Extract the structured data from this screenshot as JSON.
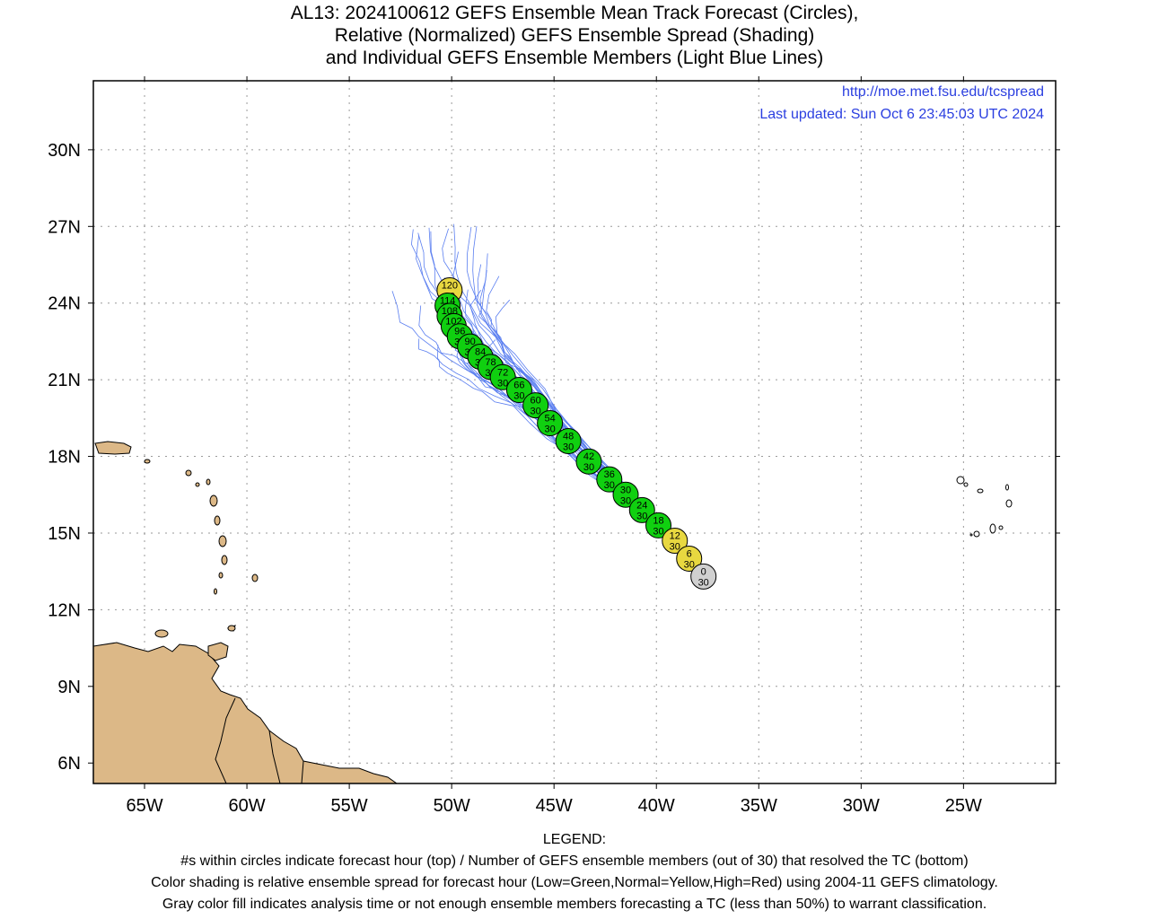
{
  "title": {
    "line1": "AL13: 2024100612 GEFS Ensemble Mean Track Forecast (Circles),",
    "line2": "Relative (Normalized) GEFS Ensemble Spread (Shading)",
    "line3": "and Individual GEFS Ensemble Members (Light Blue Lines)"
  },
  "source": {
    "url": "http://moe.met.fsu.edu/tcspread",
    "updated": "Last updated: Sun Oct 6 23:45:03 UTC 2024"
  },
  "map": {
    "lon_ticks": [
      "65W",
      "60W",
      "55W",
      "50W",
      "45W",
      "40W",
      "35W",
      "30W",
      "25W"
    ],
    "lat_ticks": [
      "30N",
      "27N",
      "24N",
      "21N",
      "18N",
      "15N",
      "12N",
      "9N",
      "6N"
    ],
    "lon_range": [
      -67.5,
      -20.5
    ],
    "lat_range": [
      5.2,
      32.7
    ],
    "colors": {
      "land": "#dcb887",
      "ocean": "#ffffff",
      "green": "#10d010",
      "yellow": "#e8d840",
      "gray": "#d0d0d0",
      "member_lines": "#5a7ef0",
      "grid": "#9a9a9a"
    }
  },
  "track": [
    {
      "hour": "0",
      "members": "30",
      "lon": -37.7,
      "lat": 13.3,
      "spread": "gray"
    },
    {
      "hour": "6",
      "members": "30",
      "lon": -38.4,
      "lat": 14.0,
      "spread": "yellow"
    },
    {
      "hour": "12",
      "members": "30",
      "lon": -39.1,
      "lat": 14.7,
      "spread": "yellow"
    },
    {
      "hour": "18",
      "members": "30",
      "lon": -39.9,
      "lat": 15.3,
      "spread": "green"
    },
    {
      "hour": "24",
      "members": "30",
      "lon": -40.7,
      "lat": 15.9,
      "spread": "green"
    },
    {
      "hour": "30",
      "members": "30",
      "lon": -41.5,
      "lat": 16.5,
      "spread": "green"
    },
    {
      "hour": "36",
      "members": "30",
      "lon": -42.3,
      "lat": 17.1,
      "spread": "green"
    },
    {
      "hour": "42",
      "members": "30",
      "lon": -43.3,
      "lat": 17.8,
      "spread": "green"
    },
    {
      "hour": "48",
      "members": "30",
      "lon": -44.3,
      "lat": 18.6,
      "spread": "green"
    },
    {
      "hour": "54",
      "members": "30",
      "lon": -45.2,
      "lat": 19.3,
      "spread": "green"
    },
    {
      "hour": "60",
      "members": "30",
      "lon": -45.9,
      "lat": 20.0,
      "spread": "green"
    },
    {
      "hour": "66",
      "members": "30",
      "lon": -46.7,
      "lat": 20.6,
      "spread": "green"
    },
    {
      "hour": "72",
      "members": "30",
      "lon": -47.5,
      "lat": 21.1,
      "spread": "green"
    },
    {
      "hour": "78",
      "members": "30",
      "lon": -48.1,
      "lat": 21.5,
      "spread": "green"
    },
    {
      "hour": "84",
      "members": "30",
      "lon": -48.6,
      "lat": 21.9,
      "spread": "green"
    },
    {
      "hour": "90",
      "members": "30",
      "lon": -49.1,
      "lat": 22.3,
      "spread": "green"
    },
    {
      "hour": "96",
      "members": "30",
      "lon": -49.6,
      "lat": 22.7,
      "spread": "green"
    },
    {
      "hour": "102",
      "members": "30",
      "lon": -49.9,
      "lat": 23.1,
      "spread": "green"
    },
    {
      "hour": "108",
      "members": "30",
      "lon": -50.1,
      "lat": 23.5,
      "spread": "green"
    },
    {
      "hour": "114",
      "members": "30",
      "lon": -50.2,
      "lat": 23.9,
      "spread": "green"
    },
    {
      "hour": "120",
      "members": "30",
      "lon": -50.1,
      "lat": 24.5,
      "spread": "yellow"
    }
  ],
  "legend": {
    "heading": "LEGEND:",
    "line1": "#s within circles indicate forecast hour (top) / Number of GEFS ensemble members (out of 30) that resolved the TC (bottom)",
    "line2": "Color shading is relative ensemble spread for forecast hour (Low=Green,Normal=Yellow,High=Red) using 2004-11 GEFS climatology.",
    "line3": "Gray color fill indicates analysis time or not enough ensemble members forecasting a TC (less than 50%) to warrant classification."
  }
}
